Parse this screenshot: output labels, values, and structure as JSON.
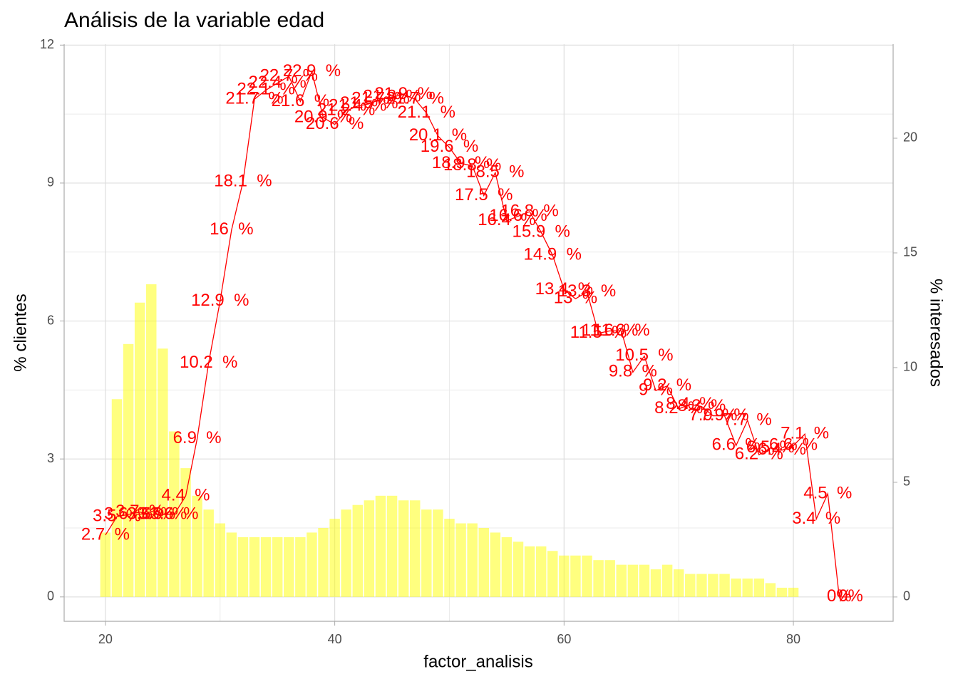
{
  "chart_data": {
    "type": "combo",
    "title": "Análisis de la variable edad",
    "xlabel": "factor_analisis",
    "ylabel": "% clientes",
    "y2label": "% interesados",
    "xlim": [
      16.4,
      88.7
    ],
    "xticks": [
      20,
      40,
      60,
      80
    ],
    "xminorticks": [
      30,
      50,
      70
    ],
    "ylim": [
      -0.53,
      12.02
    ],
    "yticks": [
      0,
      3,
      6,
      9,
      12
    ],
    "yminorticks": [
      1.5,
      4.5,
      7.5,
      10.5
    ],
    "y2lim": [
      -1.06,
      24.1
    ],
    "y2ticks": [
      0,
      5,
      10,
      15,
      20
    ],
    "grid": true,
    "series": [
      {
        "type": "bar",
        "color": "#ffff00",
        "alpha": 0.5,
        "x": [
          20,
          21,
          22,
          23,
          24,
          25,
          26,
          27,
          28,
          29,
          30,
          31,
          32,
          33,
          34,
          35,
          36,
          37,
          38,
          39,
          40,
          41,
          42,
          43,
          44,
          45,
          46,
          47,
          48,
          49,
          50,
          51,
          52,
          53,
          54,
          55,
          56,
          57,
          58,
          59,
          60,
          61,
          62,
          63,
          64,
          65,
          66,
          67,
          68,
          69,
          70,
          71,
          72,
          73,
          74,
          75,
          76,
          77,
          78,
          79,
          80
        ],
        "values": [
          1.4,
          4.3,
          5.5,
          6.4,
          6.8,
          5.4,
          3.6,
          2.8,
          2.2,
          1.9,
          1.6,
          1.4,
          1.3,
          1.3,
          1.3,
          1.3,
          1.3,
          1.3,
          1.4,
          1.5,
          1.7,
          1.9,
          2.0,
          2.1,
          2.2,
          2.2,
          2.1,
          2.1,
          1.9,
          1.9,
          1.7,
          1.6,
          1.6,
          1.5,
          1.4,
          1.3,
          1.2,
          1.1,
          1.1,
          1.0,
          0.9,
          0.9,
          0.9,
          0.8,
          0.8,
          0.7,
          0.7,
          0.7,
          0.6,
          0.7,
          0.6,
          0.5,
          0.5,
          0.5,
          0.5,
          0.4,
          0.4,
          0.4,
          0.3,
          0.2,
          0.2
        ]
      },
      {
        "type": "line",
        "axis": "y2",
        "color": "#ff0000",
        "x": [
          20,
          21,
          22,
          23,
          24,
          25,
          26,
          27,
          28,
          29,
          30,
          31,
          32,
          33,
          34,
          35,
          36,
          37,
          38,
          39,
          40,
          41,
          42,
          43,
          44,
          45,
          46,
          47,
          48,
          49,
          50,
          51,
          52,
          53,
          54,
          55,
          56,
          57,
          58,
          59,
          60,
          61,
          62,
          63,
          64,
          65,
          66,
          67,
          68,
          69,
          70,
          71,
          72,
          73,
          74,
          75,
          76,
          77,
          78,
          79,
          80,
          81,
          82,
          83,
          84,
          85
        ],
        "values": [
          2.7,
          3.5,
          3.6,
          3.7,
          3.6,
          3.6,
          3.6,
          4.4,
          6.9,
          10.2,
          12.9,
          16,
          18.1,
          21.7,
          22.1,
          22.4,
          22.7,
          21.6,
          22.9,
          20.9,
          20.6,
          21.2,
          21.4,
          21.5,
          21.7,
          21.8,
          21.9,
          21.7,
          21.1,
          20.1,
          19.6,
          18.9,
          18.8,
          17.5,
          18.5,
          16.4,
          16.6,
          16.8,
          15.9,
          14.9,
          13.4,
          13,
          13.3,
          11.5,
          11.6,
          11.6,
          9.8,
          10.5,
          9,
          9.2,
          8.2,
          8.4,
          8.3,
          7.9,
          7.9,
          6.6,
          7.7,
          6.2,
          6.5,
          6.4,
          6.6,
          7.1,
          3.4,
          4.5,
          0,
          0
        ],
        "value_labels": [
          "2.7  %",
          "3.5  %",
          "3.6  %",
          "3.7  %",
          "3.6  %",
          "3.6  %",
          "3.6  %",
          "4.4  %",
          "6.9  %",
          "10.2  %",
          "12.9  %",
          "16  %",
          "18.1  %",
          "21.7  %",
          "22.1  %",
          "22.4  %",
          "22.7  %",
          "21.6  %",
          "22.9  %",
          "20.9  %",
          "20.6  %",
          "21.2  %",
          "21.4  %",
          "21.5  %",
          "21.7  %",
          "21.8  %",
          "21.9  %",
          "21.7  %",
          "21.1  %",
          "20.1  %",
          "19.6  %",
          "18.9  %",
          "18.8  %",
          "17.5  %",
          "18.5  %",
          "16.4  %",
          "16.6  %",
          "16.8  %",
          "15.9  %",
          "14.9  %",
          "13.4  %",
          "13  %",
          "13.3  %",
          "11.5  %",
          "11.6  %",
          "11.6  %",
          "9.8  %",
          "10.5  %",
          "9  %",
          "9.2  %",
          "8.2  %",
          "8.4  %",
          "8.3  %",
          "7.9  %",
          "7.9  %",
          "6.6  %",
          "7.7  %",
          "6.2  %",
          "6.5  %",
          "6.4  %",
          "6.6  %",
          "7.1  %",
          "3.4  %",
          "4.5  %",
          "0%",
          "0%"
        ]
      }
    ]
  }
}
